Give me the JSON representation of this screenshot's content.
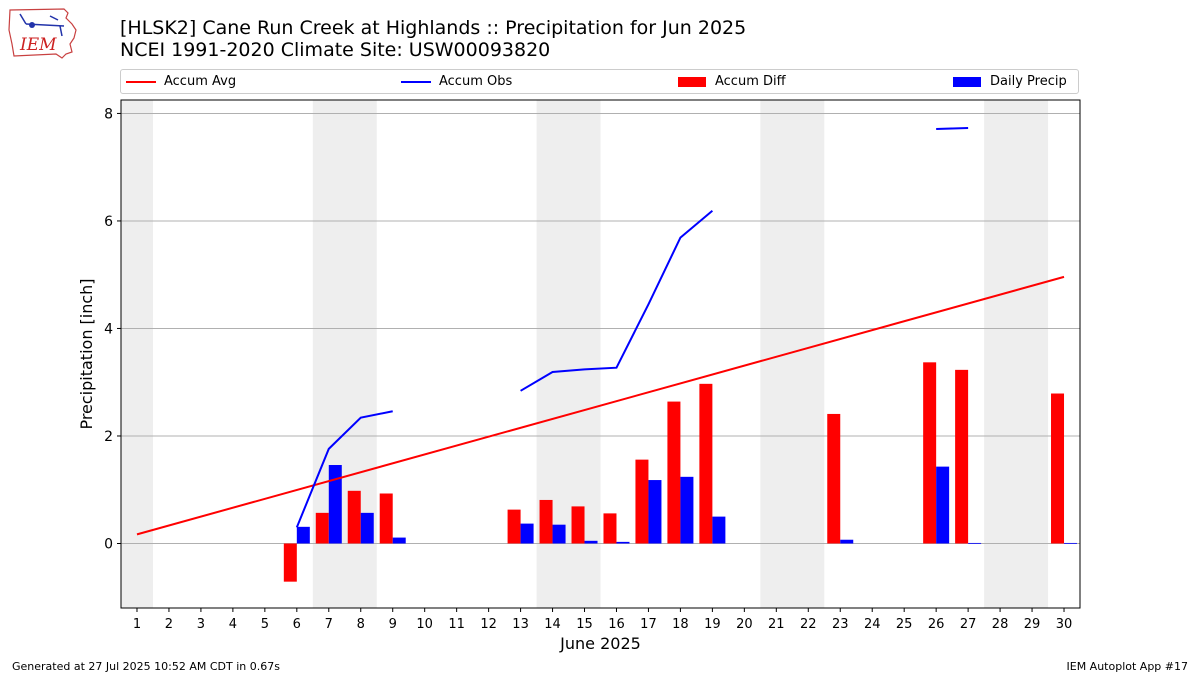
{
  "title_line1": "[HLSK2] Cane Run Creek at Highlands :: Precipitation for Jun 2025",
  "title_line2": "NCEI 1991-2020 Climate Site: USW00093820",
  "logo_text": "IEM",
  "footer_left": "Generated at 27 Jul 2025 10:52 AM CDT in 0.67s",
  "footer_right": "IEM Autoplot App #17",
  "chart_data": {
    "type": "bar",
    "xlabel": "June 2025",
    "ylabel": "Precipitation [inch]",
    "ylim": [
      -1.2,
      8.25
    ],
    "xlim": [
      0.5,
      30.5
    ],
    "yticks": [
      0,
      2,
      4,
      6,
      8
    ],
    "grid": "horizontal",
    "legend_position": "top",
    "categories": [
      "1",
      "2",
      "3",
      "4",
      "5",
      "6",
      "7",
      "8",
      "9",
      "10",
      "11",
      "12",
      "13",
      "14",
      "15",
      "16",
      "17",
      "18",
      "19",
      "20",
      "21",
      "22",
      "23",
      "24",
      "25",
      "26",
      "27",
      "28",
      "29",
      "30"
    ],
    "weekend_shading": [
      [
        0.5,
        1.5
      ],
      [
        6.5,
        8.5
      ],
      [
        13.5,
        15.5
      ],
      [
        20.5,
        22.5
      ],
      [
        27.5,
        29.5
      ]
    ],
    "series": [
      {
        "name": "Accum Avg",
        "kind": "line",
        "color": "#ff0000",
        "x": [
          1,
          30
        ],
        "y": [
          0.17,
          4.96
        ]
      },
      {
        "name": "Accum Obs",
        "kind": "line",
        "color": "#0000ff",
        "segments": [
          {
            "x": [
              6,
              7,
              8,
              9
            ],
            "y": [
              0.3,
              1.76,
              2.34,
              2.46
            ]
          },
          {
            "x": [
              13,
              14,
              15,
              16,
              17,
              18,
              19
            ],
            "y": [
              2.84,
              3.19,
              3.24,
              3.27,
              4.45,
              5.69,
              6.19
            ]
          },
          {
            "x": [
              26,
              27
            ],
            "y": [
              7.71,
              7.73
            ]
          }
        ]
      },
      {
        "name": "Accum Diff",
        "kind": "bar",
        "color": "#ff0000",
        "values": [
          null,
          null,
          null,
          null,
          null,
          -0.71,
          0.57,
          0.98,
          0.93,
          null,
          null,
          null,
          0.63,
          0.81,
          0.69,
          0.56,
          1.56,
          2.64,
          2.97,
          null,
          null,
          null,
          2.41,
          null,
          null,
          3.37,
          3.23,
          null,
          null,
          2.79
        ]
      },
      {
        "name": "Daily Precip",
        "kind": "bar",
        "color": "#0000ff",
        "values": [
          null,
          null,
          null,
          null,
          null,
          0.31,
          1.46,
          0.57,
          0.11,
          null,
          null,
          null,
          0.37,
          0.35,
          0.05,
          0.03,
          1.18,
          1.24,
          0.5,
          null,
          null,
          null,
          0.07,
          null,
          null,
          1.43,
          0.01,
          null,
          null,
          0.01
        ]
      }
    ]
  }
}
